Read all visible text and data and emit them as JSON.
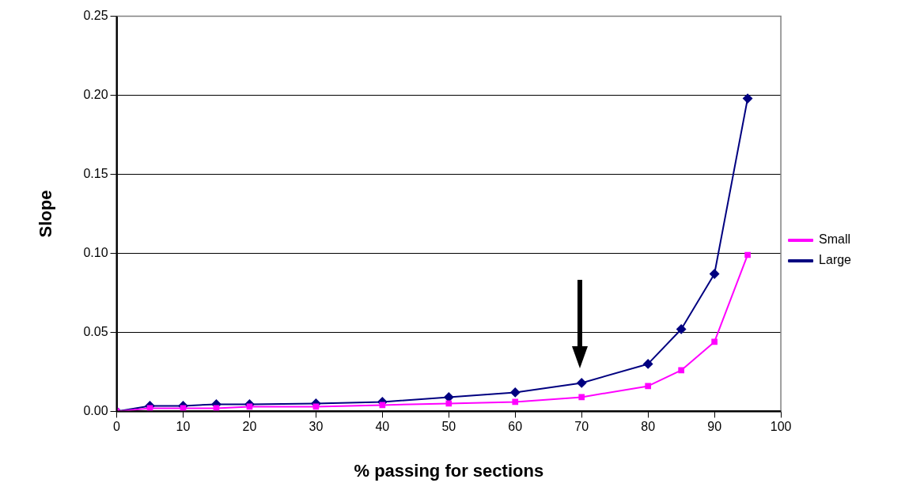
{
  "chart_data": {
    "type": "line",
    "xlabel": "% passing for sections",
    "ylabel": "Slope",
    "x": [
      0,
      5,
      10,
      15,
      20,
      30,
      40,
      50,
      60,
      70,
      80,
      85,
      90,
      95
    ],
    "series": [
      {
        "name": "Large",
        "color": "#000080",
        "marker": "diamond",
        "values": [
          0,
          0.0035,
          0.0035,
          0.0045,
          0.0045,
          0.005,
          0.006,
          0.009,
          0.012,
          0.018,
          0.03,
          0.052,
          0.087,
          0.198
        ]
      },
      {
        "name": "Small",
        "color": "#ff00ff",
        "marker": "square",
        "values": [
          0,
          0.002,
          0.002,
          0.002,
          0.003,
          0.003,
          0.004,
          0.005,
          0.006,
          0.009,
          0.016,
          0.026,
          0.044,
          0.099
        ]
      }
    ],
    "xlim": [
      0,
      100
    ],
    "xticks": [
      0,
      10,
      20,
      30,
      40,
      50,
      60,
      70,
      80,
      90,
      100
    ],
    "ylim": [
      0,
      0.25
    ],
    "yticks": [
      {
        "value": 0,
        "label": "0.00"
      },
      {
        "value": 0.05,
        "label": "0.05"
      },
      {
        "value": 0.1,
        "label": "0.10"
      },
      {
        "value": 0.15,
        "label": "0.15"
      },
      {
        "value": 0.2,
        "label": "0.20"
      },
      {
        "value": 0.25,
        "label": "0.25"
      }
    ],
    "grid": "y",
    "legend": "right"
  }
}
